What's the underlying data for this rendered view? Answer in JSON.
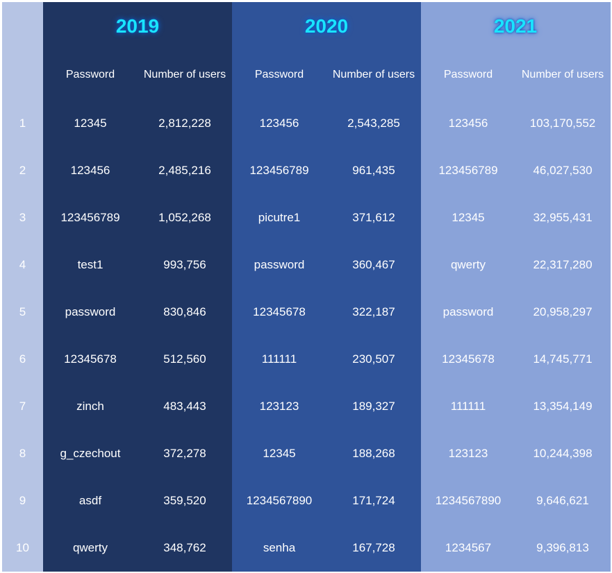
{
  "chart_data": {
    "type": "table",
    "colors": {
      "rank_column": "#b6c4e4",
      "year_2019": "#1f3561",
      "year_2020": "#2f5399",
      "year_2021": "#8aa3d9",
      "year_title": "#19e4ff",
      "text": "#ffffff"
    },
    "years": [
      "2019",
      "2020",
      "2021"
    ],
    "column_headers": [
      "Password",
      "Number of users"
    ],
    "ranks": [
      "1",
      "2",
      "3",
      "4",
      "5",
      "6",
      "7",
      "8",
      "9",
      "10"
    ],
    "series": [
      {
        "name": "2019",
        "passwords": [
          "12345",
          "123456",
          "123456789",
          "test1",
          "password",
          "12345678",
          "zinch",
          "g_czechout",
          "asdf",
          "qwerty"
        ],
        "users": [
          "2,812,228",
          "2,485,216",
          "1,052,268",
          "993,756",
          "830,846",
          "512,560",
          "483,443",
          "372,278",
          "359,520",
          "348,762"
        ]
      },
      {
        "name": "2020",
        "passwords": [
          "123456",
          "123456789",
          "picutre1",
          "password",
          "12345678",
          "111111",
          "123123",
          "12345",
          "1234567890",
          "senha"
        ],
        "users": [
          "2,543,285",
          "961,435",
          "371,612",
          "360,467",
          "322,187",
          "230,507",
          "189,327",
          "188,268",
          "171,724",
          "167,728"
        ]
      },
      {
        "name": "2021",
        "passwords": [
          "123456",
          "123456789",
          "12345",
          "qwerty",
          "password",
          "12345678",
          "111111",
          "123123",
          "1234567890",
          "1234567"
        ],
        "users": [
          "103,170,552",
          "46,027,530",
          "32,955,431",
          "22,317,280",
          "20,958,297",
          "14,745,771",
          "13,354,149",
          "10,244,398",
          "9,646,621",
          "9,396,813"
        ]
      }
    ]
  }
}
